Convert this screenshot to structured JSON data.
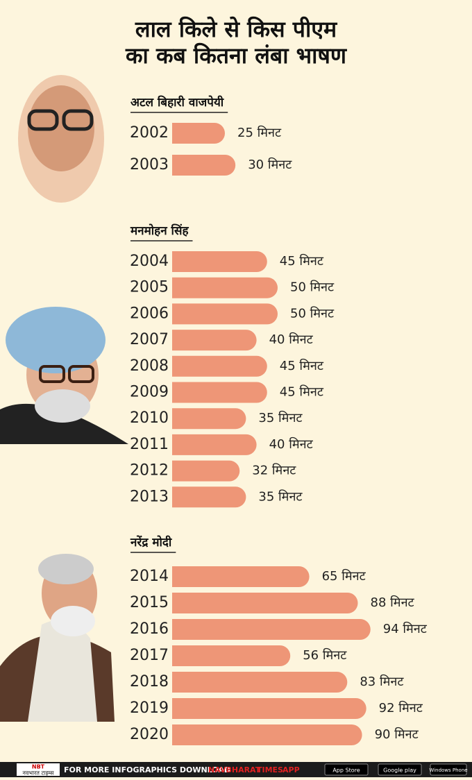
{
  "title": [
    "लाल किले से किस पीएम",
    "का कब कितना लंबा भाषण"
  ],
  "chart_data": [
    {
      "type": "bar",
      "title": "अटल बिहारी वाजपेयी",
      "color": "#ee9677",
      "categories": [
        "2002",
        "2003"
      ],
      "values": [
        25,
        30
      ],
      "value_labels": [
        "25 मिनट",
        "30 मिनट"
      ]
    },
    {
      "type": "bar",
      "title": "मनमोहन सिंह",
      "color": "#ee9677",
      "categories": [
        "2004",
        "2005",
        "2006",
        "2007",
        "2008",
        "2009",
        "2010",
        "2011",
        "2012",
        "2013"
      ],
      "values": [
        45,
        50,
        50,
        40,
        45,
        45,
        35,
        40,
        32,
        35
      ],
      "value_labels": [
        "45 मिनट",
        "50 मिनट",
        "50 मिनट",
        "40 मिनट",
        "45 मिनट",
        "45 मिनट",
        "35 मिनट",
        "40 मिनट",
        "32 मिनट",
        "35 मिनट"
      ]
    },
    {
      "type": "bar",
      "title": "नरेंद्र मोदी",
      "color": "#ee9677",
      "categories": [
        "2014",
        "2015",
        "2016",
        "2017",
        "2018",
        "2019",
        "2020"
      ],
      "values": [
        65,
        88,
        94,
        56,
        83,
        92,
        90
      ],
      "value_labels": [
        "65 मिनट",
        "88 मिनट",
        "94 मिनट",
        "56 मिनट",
        "83 मिनट",
        "92 मिनट",
        "90 मिनट"
      ]
    }
  ],
  "footer": {
    "logo": "NBT",
    "logo_text": "नवभारत टाइम्स",
    "text": "FOR MORE  INFOGRAPHICS DOWNLOAD",
    "brand1": "NAVBHARAT",
    "brand2": "TIMES",
    "brand3": "APP",
    "badges": [
      "App Store",
      "Google play",
      "Windows Phone"
    ]
  }
}
